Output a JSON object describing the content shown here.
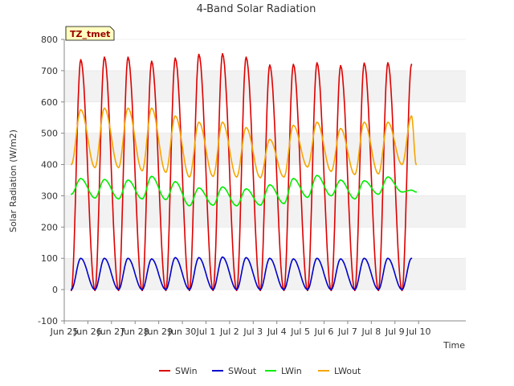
{
  "chart_data": {
    "type": "line",
    "title": "4-Band Solar Radiation",
    "xlabel": "Time",
    "ylabel": "Solar Radiation (W/m2)",
    "station_label": "TZ_tmet",
    "xlim": [
      24.0,
      41.0
    ],
    "ylim": [
      -100,
      800
    ],
    "yticks": [
      -100,
      0,
      100,
      200,
      300,
      400,
      500,
      600,
      700,
      800
    ],
    "xticks": [
      {
        "pos": 24,
        "label": "Jun 25"
      },
      {
        "pos": 25,
        "label": "Jun 26"
      },
      {
        "pos": 26,
        "label": "Jun 27"
      },
      {
        "pos": 27,
        "label": "Jun 28"
      },
      {
        "pos": 28,
        "label": "Jun 29"
      },
      {
        "pos": 29,
        "label": "Jun 30"
      },
      {
        "pos": 30,
        "label": "Jul 1"
      },
      {
        "pos": 31,
        "label": "Jul 2"
      },
      {
        "pos": 32,
        "label": "Jul 3"
      },
      {
        "pos": 33,
        "label": "Jul 4"
      },
      {
        "pos": 34,
        "label": "Jul 5"
      },
      {
        "pos": 35,
        "label": "Jul 6"
      },
      {
        "pos": 36,
        "label": "Jul 7"
      },
      {
        "pos": 37,
        "label": "Jul 8"
      },
      {
        "pos": 38,
        "label": "Jul 9"
      },
      {
        "pos": 39,
        "label": "Jul 10"
      }
    ],
    "grid": "horizontal bands",
    "legend_position": "bottom",
    "series": [
      {
        "name": "SWin",
        "color": "#dd0000",
        "x": [
          24.3,
          24.7,
          25.3,
          25.7,
          26.3,
          26.7,
          27.3,
          27.7,
          28.3,
          28.7,
          29.3,
          29.7,
          30.3,
          30.7,
          31.3,
          31.7,
          32.3,
          32.7,
          33.3,
          33.7,
          34.3,
          34.7,
          35.3,
          35.7,
          36.3,
          36.7,
          37.3,
          37.7,
          38.3,
          38.7
        ],
        "values": [
          -3,
          735,
          -3,
          743,
          -3,
          743,
          -3,
          730,
          -3,
          740,
          -3,
          752,
          -3,
          754,
          -3,
          743,
          -3,
          718,
          -3,
          720,
          -3,
          725,
          -3,
          716,
          -3,
          724,
          -3,
          725,
          -3,
          720
        ]
      },
      {
        "name": "SWout",
        "color": "#0000cc",
        "x": [
          24.3,
          24.7,
          25.3,
          25.7,
          26.3,
          26.7,
          27.3,
          27.7,
          28.3,
          28.7,
          29.3,
          29.7,
          30.3,
          30.7,
          31.3,
          31.7,
          32.3,
          32.7,
          33.3,
          33.7,
          34.3,
          34.7,
          35.3,
          35.7,
          36.3,
          36.7,
          37.3,
          37.7,
          38.3,
          38.7
        ],
        "values": [
          0,
          100,
          0,
          100,
          0,
          100,
          0,
          98,
          0,
          102,
          0,
          102,
          0,
          104,
          0,
          102,
          0,
          100,
          0,
          98,
          0,
          100,
          0,
          98,
          0,
          100,
          0,
          100,
          0,
          100
        ]
      },
      {
        "name": "LWin",
        "color": "#00ee00",
        "x": [
          24.3,
          24.7,
          25.3,
          25.7,
          26.3,
          26.7,
          27.3,
          27.7,
          28.3,
          28.7,
          29.3,
          29.7,
          30.3,
          30.7,
          31.3,
          31.7,
          32.3,
          32.7,
          33.3,
          33.7,
          34.3,
          34.7,
          35.3,
          35.7,
          36.3,
          36.7,
          37.3,
          37.7,
          38.3,
          38.7,
          38.9
        ],
        "values": [
          305,
          355,
          293,
          352,
          290,
          350,
          290,
          362,
          288,
          345,
          268,
          325,
          270,
          328,
          268,
          322,
          270,
          335,
          275,
          355,
          295,
          365,
          300,
          350,
          290,
          348,
          305,
          360,
          312,
          318,
          312
        ]
      },
      {
        "name": "LWout",
        "color": "#f5a500",
        "x": [
          24.3,
          24.7,
          25.3,
          25.7,
          26.3,
          26.7,
          27.3,
          27.7,
          28.3,
          28.7,
          29.3,
          29.7,
          30.3,
          30.7,
          31.3,
          31.7,
          32.3,
          32.7,
          33.3,
          33.7,
          34.3,
          34.7,
          35.3,
          35.7,
          36.3,
          36.7,
          37.3,
          37.7,
          38.3,
          38.7,
          38.9
        ],
        "values": [
          400,
          575,
          390,
          580,
          390,
          580,
          380,
          580,
          375,
          555,
          360,
          535,
          362,
          535,
          360,
          518,
          358,
          480,
          360,
          525,
          392,
          535,
          378,
          515,
          368,
          535,
          370,
          535,
          400,
          555,
          400
        ]
      }
    ]
  }
}
